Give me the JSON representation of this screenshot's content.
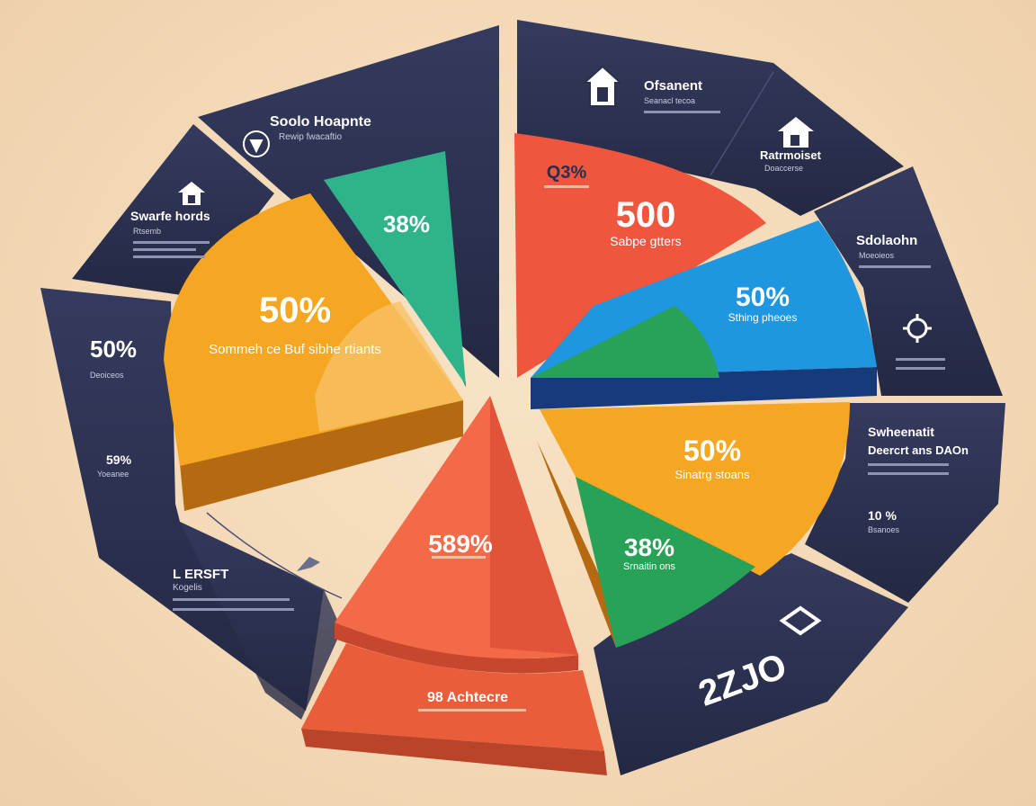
{
  "chart_data": {
    "type": "pie",
    "title": "",
    "slices": [
      {
        "value_label": "50%",
        "caption": "Sommeh ce Buf sibhe rtiants",
        "color": "#f5a623"
      },
      {
        "value_label": "38%",
        "caption": "",
        "color": "#2fb38a"
      },
      {
        "value_label": "500",
        "caption": "Sabpe gtters",
        "small_label": "Q3%",
        "color": "#f0553e"
      },
      {
        "value_label": "50%",
        "caption": "Sthing pheoes",
        "color": "#1e96e0"
      },
      {
        "value_label": "50%",
        "caption": "Sinatrg stoans",
        "color": "#f5a623"
      },
      {
        "value_label": "38%",
        "caption": "Srnaitin ons",
        "color": "#27a257"
      },
      {
        "value_label": "589%",
        "caption": "",
        "color": "#f26a47"
      },
      {
        "value_label": "98 Achtecre",
        "caption": "",
        "color": "#ea5d3a"
      }
    ],
    "ring_labels": [
      {
        "title": "Soolo Hoapnte",
        "sub": "Rewip fwacaftio"
      },
      {
        "title": "Swarfe hords",
        "sub": "Rtsemb"
      },
      {
        "title": "50%",
        "sub": "Deoiceos"
      },
      {
        "title": "59%",
        "sub": "Yoeanee"
      },
      {
        "title": "L ERSFT",
        "sub": "Kogelis"
      },
      {
        "title": "Ofsanent",
        "sub": "Seanacl tecoa"
      },
      {
        "title": "Ratrmoiset",
        "sub": "Doaccerse"
      },
      {
        "title": "Sdolaohn",
        "sub": "Moeoieos"
      },
      {
        "title": "Swheenatit",
        "sub": "Deercrt ans DAOn"
      },
      {
        "title": "10 %",
        "sub": "Bsanoes"
      },
      {
        "title": "2ZJO",
        "sub": ""
      }
    ]
  },
  "colors": {
    "ring": "#2c3150",
    "background": "#f5dcbc"
  },
  "icons": [
    "house-icon",
    "house-icon",
    "house-icon",
    "gear-icon",
    "bird-icon",
    "logo-icon"
  ]
}
